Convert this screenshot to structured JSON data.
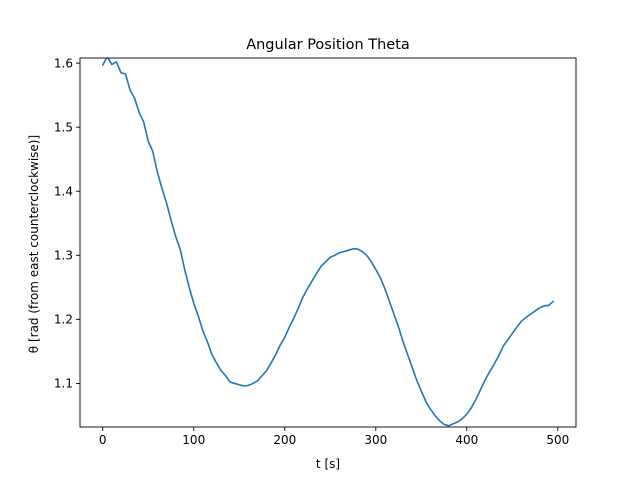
{
  "chart_data": {
    "type": "line",
    "title": "Angular Position Theta",
    "xlabel": "t [s]",
    "ylabel": "θ [rad (from east counterclockwise)]",
    "xlim": [
      -25,
      520
    ],
    "ylim": [
      1.032,
      1.608
    ],
    "xticks": [
      0,
      100,
      200,
      300,
      400,
      500
    ],
    "xtick_labels": [
      "0",
      "100",
      "200",
      "300",
      "400",
      "500"
    ],
    "yticks": [
      1.1,
      1.2,
      1.3,
      1.4,
      1.5,
      1.6
    ],
    "ytick_labels": [
      "1.1",
      "1.2",
      "1.3",
      "1.4",
      "1.5",
      "1.6"
    ],
    "grid": false,
    "legend": "none",
    "series": [
      {
        "color": "#1f77b4",
        "x": [
          0,
          5,
          10,
          15,
          20,
          25,
          30,
          35,
          40,
          45,
          50,
          55,
          60,
          65,
          70,
          75,
          80,
          85,
          90,
          95,
          100,
          105,
          110,
          115,
          120,
          125,
          130,
          135,
          140,
          145,
          150,
          155,
          160,
          165,
          170,
          175,
          180,
          185,
          190,
          195,
          200,
          205,
          210,
          215,
          220,
          225,
          230,
          235,
          240,
          245,
          250,
          255,
          260,
          265,
          270,
          275,
          280,
          285,
          290,
          295,
          300,
          305,
          310,
          315,
          320,
          325,
          330,
          335,
          340,
          345,
          350,
          355,
          360,
          365,
          370,
          375,
          380,
          385,
          390,
          395,
          400,
          405,
          410,
          415,
          420,
          425,
          430,
          435,
          440,
          445,
          450,
          455,
          460,
          465,
          470,
          475,
          480,
          485,
          490,
          495
        ],
        "y": [
          1.597,
          1.61,
          1.598,
          1.602,
          1.585,
          1.583,
          1.558,
          1.545,
          1.523,
          1.508,
          1.478,
          1.462,
          1.43,
          1.405,
          1.382,
          1.355,
          1.33,
          1.31,
          1.278,
          1.25,
          1.225,
          1.205,
          1.182,
          1.165,
          1.145,
          1.132,
          1.12,
          1.112,
          1.102,
          1.1,
          1.098,
          1.096,
          1.097,
          1.1,
          1.104,
          1.112,
          1.12,
          1.132,
          1.145,
          1.16,
          1.172,
          1.188,
          1.202,
          1.218,
          1.235,
          1.248,
          1.26,
          1.272,
          1.283,
          1.29,
          1.297,
          1.3,
          1.304,
          1.306,
          1.308,
          1.31,
          1.31,
          1.306,
          1.3,
          1.29,
          1.278,
          1.265,
          1.248,
          1.228,
          1.208,
          1.188,
          1.165,
          1.145,
          1.125,
          1.105,
          1.088,
          1.072,
          1.06,
          1.05,
          1.042,
          1.036,
          1.034,
          1.037,
          1.04,
          1.045,
          1.052,
          1.062,
          1.075,
          1.09,
          1.105,
          1.118,
          1.13,
          1.143,
          1.158,
          1.168,
          1.178,
          1.188,
          1.197,
          1.203,
          1.208,
          1.213,
          1.218,
          1.221,
          1.222,
          1.228
        ]
      }
    ]
  }
}
